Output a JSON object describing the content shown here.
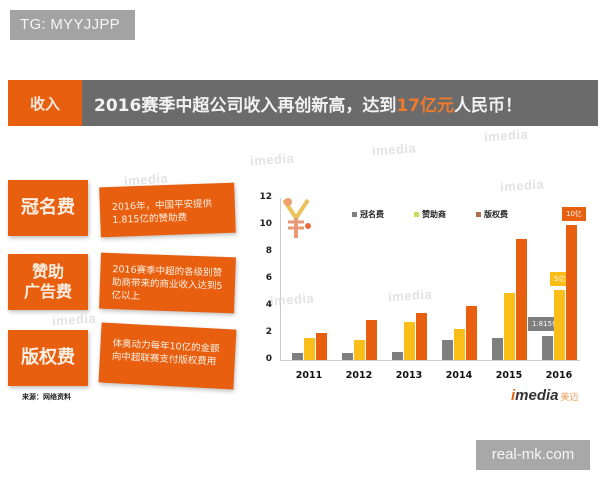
{
  "tg_badge": "TG: MYYJJPP",
  "header": {
    "tag": "收入",
    "title_prefix": "2016赛季中超公司收入再创新高，达到",
    "title_highlight": "17亿元",
    "title_suffix": "人民币！"
  },
  "categories": [
    {
      "label": "冠名费",
      "description": "2016年，中国平安提供1.815亿的赞助费"
    },
    {
      "label": "赞助广告费",
      "label_line1": "赞助",
      "label_line2": "广告费",
      "description": "2016赛季中超的各级别赞助商带来的商业收入达到5亿以上"
    },
    {
      "label": "版权费",
      "description": "体奥动力每年10亿的金额向中超联赛支付版权费用"
    }
  ],
  "source": "来源：网络资料",
  "watermark_text": "imedia",
  "brand": {
    "prefix": "i",
    "name": "media",
    "cn": "美迈"
  },
  "site_badge": "real-mk.com",
  "colors": {
    "orange": "#e8600f",
    "yellow": "#fbbd18",
    "gray": "#7f7f7f",
    "title_bg": "#6b6b6b"
  },
  "chart_data": {
    "type": "bar",
    "title": "",
    "xlabel": "",
    "ylabel": "",
    "ylim": [
      0,
      12
    ],
    "yticks": [
      0,
      2,
      4,
      6,
      8,
      10,
      12
    ],
    "categories": [
      "2011",
      "2012",
      "2013",
      "2014",
      "2015",
      "2016"
    ],
    "series": [
      {
        "name": "冠名费",
        "color": "#7f7f7f",
        "values": [
          0.5,
          0.5,
          0.6,
          1.5,
          1.6,
          1.815
        ]
      },
      {
        "name": "赞助商",
        "color": "#fbbd18",
        "values": [
          1.6,
          1.5,
          2.8,
          2.3,
          5.0,
          5.2
        ]
      },
      {
        "name": "版权费",
        "color": "#e8600f",
        "values": [
          2.0,
          3.0,
          3.5,
          4.0,
          9.0,
          10.0
        ]
      }
    ],
    "annotations": [
      {
        "category": "2016",
        "series": "冠名费",
        "text": "1.815亿"
      },
      {
        "category": "2016",
        "series": "赞助商",
        "text": "5亿"
      },
      {
        "category": "2016",
        "series": "版权费",
        "text": "10亿"
      }
    ],
    "legend_position": "top",
    "grid": false
  }
}
